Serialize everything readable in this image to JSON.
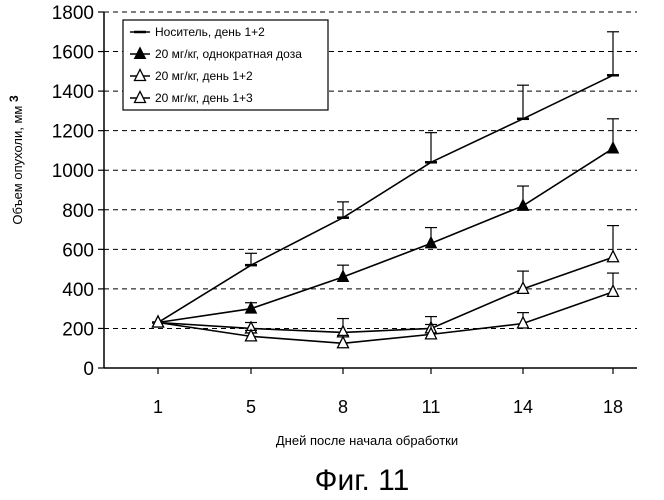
{
  "chart_data": {
    "type": "line",
    "title": "",
    "xlabel": "Дней после начала обработки",
    "ylabel": "Объем опухоли, мм",
    "ylabel_superscript": "3",
    "categories": [
      "1",
      "5",
      "8",
      "11",
      "14",
      "18"
    ],
    "ylim": [
      0,
      1800
    ],
    "yticks": [
      0,
      200,
      400,
      600,
      800,
      1000,
      1200,
      1400,
      1600,
      1800
    ],
    "grid": "horizontal-dashed",
    "legend_position": "top-left",
    "series": [
      {
        "name": "Носитель, день 1+2",
        "marker": "dash",
        "values": [
          230,
          520,
          760,
          1040,
          1260,
          1480
        ],
        "errors": [
          0,
          60,
          80,
          150,
          170,
          220
        ]
      },
      {
        "name": "20 мг/кг, однократная доза",
        "marker": "filled-triangle",
        "values": [
          230,
          300,
          460,
          630,
          820,
          1110
        ],
        "errors": [
          0,
          30,
          60,
          80,
          100,
          150
        ]
      },
      {
        "name": "20 мг/кг, день 1+2",
        "marker": "open-triangle",
        "values": [
          230,
          200,
          180,
          200,
          400,
          560
        ],
        "errors": [
          0,
          30,
          70,
          60,
          90,
          160
        ]
      },
      {
        "name": "20 мг/кг, день 1+3",
        "marker": "open-triangle",
        "values": [
          230,
          160,
          125,
          170,
          225,
          385
        ],
        "errors": [
          0,
          30,
          40,
          50,
          55,
          95
        ]
      }
    ]
  },
  "caption": "Фиг. 11"
}
